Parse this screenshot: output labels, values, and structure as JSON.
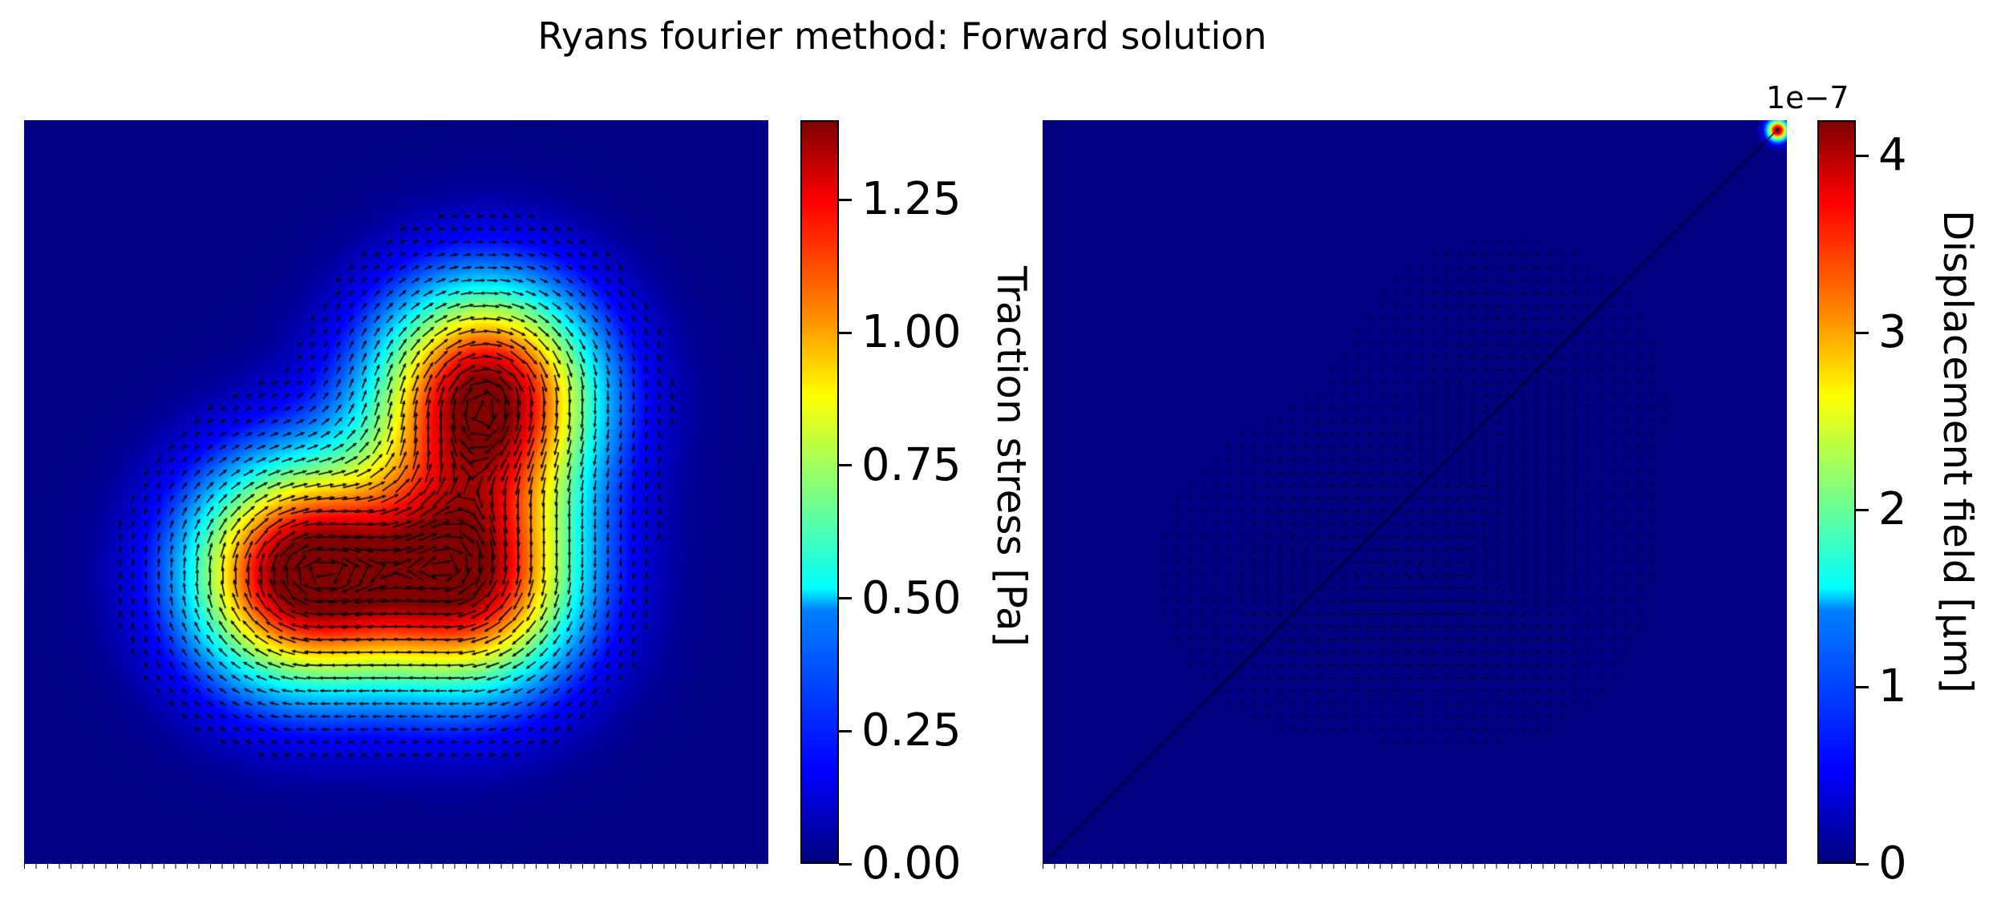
{
  "title": "Ryans fourier method: Forward solution",
  "chart_data": [
    {
      "type": "heatmap",
      "overlay": "quiver",
      "colormap": "jet",
      "colorbar": {
        "label": "Traction stress [Pa]",
        "range": [
          0,
          1.4
        ],
        "ticks": [
          "0.00",
          "0.25",
          "0.50",
          "0.75",
          "1.00",
          "1.25"
        ],
        "tick_values": [
          0,
          0.25,
          0.5,
          0.75,
          1.0,
          1.25
        ]
      },
      "peaks": [
        {
          "x": 0.37,
          "y": 0.61,
          "value": 1.4
        },
        {
          "x": 0.62,
          "y": 0.37,
          "value": 1.38
        },
        {
          "x": 0.6,
          "y": 0.62,
          "value": 1.25
        }
      ],
      "axes_visible": false
    },
    {
      "type": "heatmap",
      "overlay": "quiver",
      "colormap": "jet",
      "colorbar": {
        "label": "Displacement field [µm]",
        "offset_text": "1e−7",
        "range": [
          0,
          4.2
        ],
        "ticks": [
          "0",
          "1",
          "2",
          "3",
          "4"
        ],
        "tick_values": [
          0,
          1,
          2,
          3,
          4
        ]
      },
      "features": {
        "corner_hotspot": {
          "x": 1.0,
          "y": 1.0,
          "value": 4.2
        },
        "diagonal_line": true
      },
      "axes_visible": false
    }
  ]
}
